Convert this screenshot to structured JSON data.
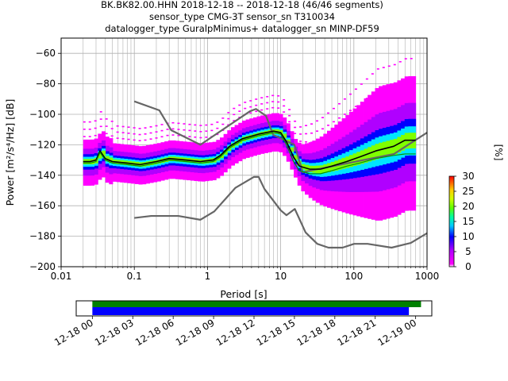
{
  "title": {
    "line1": "BK.BK82.00.HHN   2018-12-18 -- 2018-12-18  (46/46 segments)",
    "line2": "sensor_type CMG-3T sensor_sn T310034",
    "line3": "datalogger_type GuralpMinimus+ datalogger_sn MINP-DF59"
  },
  "colorbar": {
    "label": "[%]",
    "ticks": [
      "0",
      "5",
      "10",
      "15",
      "20",
      "25",
      "30"
    ],
    "range": [
      0,
      30
    ]
  },
  "chart_data": [
    {
      "type": "heatmap",
      "xlabel": "Period [s]",
      "ylabel": "Power [m²/s⁴/Hz] [dB]",
      "xscale": "log",
      "xlim": [
        0.01,
        1000
      ],
      "ylim": [
        -200,
        -50
      ],
      "xticks": [
        "0.01",
        "0.1",
        "1",
        "10",
        "100",
        "1000"
      ],
      "yticks": [
        "−200",
        "−180",
        "−160",
        "−140",
        "−120",
        "−100",
        "−80",
        "−60"
      ],
      "grid": true,
      "series": [
        {
          "role": "high-noise-model",
          "color": "#666666",
          "points": [
            [
              0.1,
              -91.5
            ],
            [
              0.22,
              -97.4
            ],
            [
              0.32,
              -110.5
            ],
            [
              0.8,
              -120
            ],
            [
              3.8,
              -98
            ],
            [
              4.6,
              -96.5
            ],
            [
              6.3,
              -101
            ],
            [
              7.9,
              -113.5
            ],
            [
              15.4,
              -120
            ],
            [
              20,
              -138
            ],
            [
              354,
              -126
            ],
            [
              1000,
              -112
            ]
          ]
        },
        {
          "role": "low-noise-model",
          "color": "#666666",
          "points": [
            [
              0.1,
              -168
            ],
            [
              0.17,
              -166.7
            ],
            [
              0.4,
              -166.7
            ],
            [
              0.8,
              -169.2
            ],
            [
              1.24,
              -163.7
            ],
            [
              2.4,
              -148.3
            ],
            [
              4.3,
              -141.1
            ],
            [
              5,
              -141.1
            ],
            [
              6,
              -149
            ],
            [
              10,
              -163
            ],
            [
              12,
              -166.2
            ],
            [
              15.6,
              -162.1
            ],
            [
              21.9,
              -177.5
            ],
            [
              31.6,
              -185
            ],
            [
              45,
              -187.5
            ],
            [
              70,
              -187.5
            ],
            [
              101,
              -185
            ],
            [
              154,
              -185
            ],
            [
              328,
              -187.5
            ],
            [
              600,
              -184.4
            ],
            [
              1000,
              -178
            ]
          ]
        },
        {
          "role": "mean",
          "color": "#000000",
          "points": [
            [
              0.02,
              -131
            ],
            [
              0.025,
              -131
            ],
            [
              0.03,
              -130
            ],
            [
              0.034,
              -124
            ],
            [
              0.04,
              -129
            ],
            [
              0.05,
              -131
            ],
            [
              0.08,
              -132
            ],
            [
              0.12,
              -133
            ],
            [
              0.2,
              -131
            ],
            [
              0.3,
              -129
            ],
            [
              0.5,
              -130
            ],
            [
              0.8,
              -131
            ],
            [
              1.2,
              -130
            ],
            [
              1.5,
              -127
            ],
            [
              2,
              -121
            ],
            [
              3,
              -116
            ],
            [
              5,
              -113
            ],
            [
              8,
              -111
            ],
            [
              10,
              -112
            ],
            [
              12,
              -118
            ],
            [
              15,
              -128
            ],
            [
              18,
              -134
            ],
            [
              25,
              -136
            ],
            [
              35,
              -136
            ],
            [
              50,
              -134
            ],
            [
              80,
              -131
            ],
            [
              120,
              -128
            ],
            [
              200,
              -124
            ],
            [
              350,
              -121
            ],
            [
              500,
              -117
            ],
            [
              700,
              -117
            ]
          ]
        },
        {
          "role": "mode",
          "color": "#009400",
          "points": [
            [
              0.02,
              -132
            ],
            [
              0.025,
              -132
            ],
            [
              0.03,
              -131
            ],
            [
              0.034,
              -125
            ],
            [
              0.04,
              -130
            ],
            [
              0.05,
              -132
            ],
            [
              0.08,
              -133
            ],
            [
              0.12,
              -134
            ],
            [
              0.2,
              -132
            ],
            [
              0.3,
              -130
            ],
            [
              0.5,
              -131
            ],
            [
              0.8,
              -132
            ],
            [
              1.2,
              -131
            ],
            [
              1.5,
              -128
            ],
            [
              2,
              -122
            ],
            [
              3,
              -117
            ],
            [
              5,
              -114
            ],
            [
              8,
              -112
            ],
            [
              10,
              -113
            ],
            [
              12,
              -120
            ],
            [
              15,
              -131
            ],
            [
              18,
              -137
            ],
            [
              25,
              -139
            ],
            [
              35,
              -139
            ],
            [
              50,
              -137
            ],
            [
              80,
              -134
            ],
            [
              120,
              -132
            ],
            [
              200,
              -129
            ],
            [
              350,
              -127
            ],
            [
              500,
              -126
            ],
            [
              700,
              -126
            ]
          ]
        }
      ],
      "density_bands": [
        {
          "percent": 2,
          "color": "#ff00ff",
          "spread": 12,
          "pstart": 0.02,
          "pend": 700
        },
        {
          "percent": 5,
          "color": "#b000ff",
          "spread": 7,
          "pstart": 0.02,
          "pend": 700
        },
        {
          "percent": 12,
          "color": "#0000ff",
          "spread": 4,
          "pstart": 0.02,
          "pend": 700
        },
        {
          "percent": 16,
          "color": "#00e5ff",
          "spread": 2.6,
          "pstart": 0.02,
          "pend": 700
        },
        {
          "percent": 22,
          "color": "#80ff00",
          "spread": 1.4,
          "pstart": 0.02,
          "pend": 700
        }
      ]
    },
    {
      "type": "timeline",
      "xticks": [
        "12-18 00",
        "12-18 03",
        "12-18 06",
        "12-18 09",
        "12-18 12",
        "12-18 15",
        "12-18 18",
        "12-18 21",
        "12-19 00"
      ],
      "xlim_hours": [
        -1.2,
        25.2
      ],
      "bars": [
        {
          "role": "data-availability",
          "color": "#008000",
          "start_hours": 0,
          "end_hours": 24.4
        },
        {
          "role": "psd-segments",
          "color": "#0000ff",
          "start_hours": 0,
          "end_hours": 23.5
        }
      ]
    }
  ]
}
